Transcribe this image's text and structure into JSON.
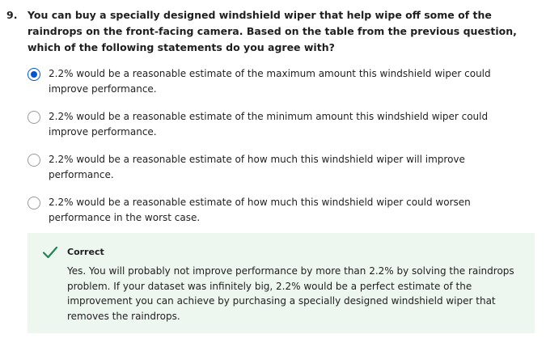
{
  "question": {
    "number": "9.",
    "text": "You can buy a specially designed windshield wiper that help wipe off some of the raindrops on the front-facing camera. Based on the table from the previous question, which of the following statements do you agree with?"
  },
  "options": [
    {
      "label": "2.2% would be a reasonable estimate of the maximum amount this windshield wiper could improve performance.",
      "selected": true
    },
    {
      "label": "2.2% would be a reasonable estimate of the minimum amount this windshield wiper could improve performance.",
      "selected": false
    },
    {
      "label": "2.2% would be a reasonable estimate of how much this windshield wiper will improve performance.",
      "selected": false
    },
    {
      "label": "2.2% would be a reasonable estimate of how much this windshield wiper could worsen performance in the worst case.",
      "selected": false
    }
  ],
  "feedback": {
    "status": "Correct",
    "icon": "checkmark-icon",
    "text": "Yes. You will probably not improve performance by more than 2.2% by solving the raindrops problem. If your dataset was infinitely big, 2.2% would be a perfect estimate of the improvement you can achieve by purchasing a specially designed windshield wiper that removes the raindrops."
  },
  "colors": {
    "accent": "#0056d2",
    "success": "#1f8354",
    "feedback_bg": "#eef6f0"
  }
}
